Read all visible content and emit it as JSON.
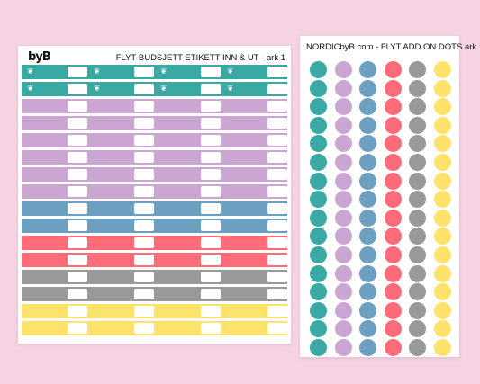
{
  "left_sheet": {
    "logo": "byB",
    "title": "FLYT-BUDSJETT ETIKETT INN & UT - ark 1",
    "leaf_glyph": "❦",
    "label_positions": 4,
    "rows": [
      {
        "color": "#3aa9a3",
        "icon": "leaf-icon"
      },
      {
        "color": "#3aa9a3",
        "icon": "leaf-icon"
      },
      {
        "color": "#cba6d3"
      },
      {
        "color": "#cba6d3"
      },
      {
        "color": "#cba6d3"
      },
      {
        "color": "#cba6d3"
      },
      {
        "color": "#cba6d3"
      },
      {
        "color": "#cba6d3"
      },
      {
        "color": "#6d9fc1"
      },
      {
        "color": "#6d9fc1"
      },
      {
        "color": "#ff6b78"
      },
      {
        "color": "#ff6b78"
      },
      {
        "color": "#999999"
      },
      {
        "color": "#999999"
      },
      {
        "color": "#fde26c"
      },
      {
        "color": "#fde26c"
      }
    ]
  },
  "right_sheet": {
    "title": "NORDICbyB.com - FLYT ADD ON DOTS ark 1",
    "dot_colors": [
      "#3aa9a3",
      "#cba6d3",
      "#6d9fc1",
      "#ff6b78",
      "#999999",
      "#fde26c"
    ],
    "dot_rows": 16
  }
}
